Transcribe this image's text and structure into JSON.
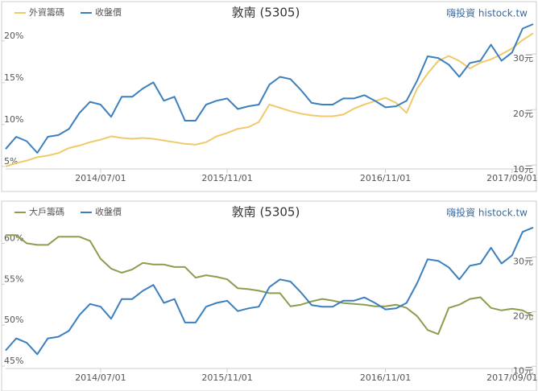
{
  "chart_data": [
    {
      "type": "line",
      "title": "敦南 (5305)",
      "brand": "嗨投資 histock.tw",
      "categories": [
        null,
        null,
        null,
        null,
        null,
        null,
        null,
        null,
        null,
        "2014/07/01",
        null,
        null,
        null,
        null,
        null,
        null,
        null,
        null,
        null,
        null,
        null,
        "2015/11/01",
        null,
        null,
        null,
        null,
        null,
        null,
        null,
        null,
        null,
        null,
        null,
        null,
        null,
        null,
        "2016/11/01",
        null,
        null,
        null,
        null,
        null,
        null,
        null,
        null,
        null,
        null,
        null,
        "2017/09/01",
        null,
        null
      ],
      "series": [
        {
          "name": "外資籌碼",
          "color": "#f0c96b",
          "axis": "y",
          "values": [
            5.0,
            5.4,
            5.7,
            6.1,
            6.3,
            6.6,
            7.2,
            7.5,
            7.9,
            8.2,
            8.6,
            8.4,
            8.3,
            8.4,
            8.3,
            8.1,
            7.9,
            7.7,
            7.6,
            7.9,
            8.6,
            9.0,
            9.5,
            9.7,
            10.3,
            12.4,
            12.0,
            11.6,
            11.3,
            11.1,
            11.0,
            11.0,
            11.2,
            11.9,
            12.4,
            12.8,
            13.2,
            12.6,
            11.4,
            14.3,
            16.1,
            17.6,
            18.2,
            17.6,
            16.7,
            17.4,
            17.8,
            18.4,
            19.1,
            20.1,
            20.9
          ]
        },
        {
          "name": "收盤價",
          "color": "#3b7fbf",
          "axis": "y2",
          "values": [
            12.9,
            15.1,
            14.3,
            12.2,
            15.1,
            15.4,
            16.5,
            19.4,
            21.4,
            20.9,
            18.7,
            22.3,
            22.3,
            23.8,
            24.9,
            21.6,
            22.3,
            18.0,
            18.0,
            20.9,
            21.6,
            22.0,
            20.1,
            20.6,
            20.9,
            24.5,
            25.9,
            25.5,
            23.5,
            21.2,
            20.9,
            20.9,
            22.0,
            22.0,
            22.6,
            21.6,
            20.4,
            20.6,
            21.6,
            25.2,
            29.6,
            29.3,
            28.1,
            25.9,
            28.4,
            28.8,
            31.7,
            28.8,
            30.3,
            34.6,
            35.4
          ]
        }
      ],
      "ylim": [
        4.7,
        22.0
      ],
      "yticks": [
        {
          "value": 5,
          "label": "5%"
        },
        {
          "value": 10,
          "label": "10%"
        },
        {
          "value": 15,
          "label": "15%"
        },
        {
          "value": 20,
          "label": "20%"
        }
      ],
      "y2lim": [
        9.3,
        35.4
      ],
      "y2ticks": [
        {
          "value": 10,
          "label": "10元"
        },
        {
          "value": 20,
          "label": "20元"
        },
        {
          "value": 30,
          "label": "30元"
        }
      ],
      "legend": "top-left"
    },
    {
      "type": "line",
      "title": "敦南 (5305)",
      "brand": "嗨投資 histock.tw",
      "categories": [
        null,
        null,
        null,
        null,
        null,
        null,
        null,
        null,
        null,
        "2014/07/01",
        null,
        null,
        null,
        null,
        null,
        null,
        null,
        null,
        null,
        null,
        null,
        "2015/11/01",
        null,
        null,
        null,
        null,
        null,
        null,
        null,
        null,
        null,
        null,
        null,
        null,
        null,
        null,
        "2016/11/01",
        null,
        null,
        null,
        null,
        null,
        null,
        null,
        null,
        null,
        null,
        null,
        "2017/09/01",
        null,
        null
      ],
      "series": [
        {
          "name": "大戶籌碼",
          "color": "#8a9e4f",
          "axis": "y",
          "values": [
            61.0,
            61.0,
            60.0,
            59.8,
            59.8,
            60.8,
            60.8,
            60.8,
            60.3,
            58.1,
            56.9,
            56.4,
            56.8,
            57.6,
            57.4,
            57.4,
            57.1,
            57.1,
            55.8,
            56.1,
            55.9,
            55.6,
            54.5,
            54.4,
            54.2,
            53.9,
            53.9,
            52.3,
            52.5,
            52.9,
            53.2,
            53.0,
            52.7,
            52.6,
            52.5,
            52.3,
            52.3,
            52.5,
            52.1,
            51.1,
            49.4,
            48.9,
            52.1,
            52.5,
            53.2,
            53.4,
            52.1,
            51.8,
            52.0,
            51.8,
            51.1
          ]
        },
        {
          "name": "收盤價",
          "color": "#3b7fbf",
          "axis": "y2",
          "values": [
            12.9,
            15.1,
            14.3,
            12.2,
            15.1,
            15.4,
            16.5,
            19.4,
            21.4,
            20.9,
            18.7,
            22.3,
            22.3,
            23.8,
            24.9,
            21.6,
            22.3,
            18.0,
            18.0,
            20.9,
            21.6,
            22.0,
            20.1,
            20.6,
            20.9,
            24.5,
            25.9,
            25.5,
            23.5,
            21.2,
            20.9,
            20.9,
            22.0,
            22.0,
            22.6,
            21.6,
            20.4,
            20.6,
            21.6,
            25.2,
            29.6,
            29.3,
            28.1,
            25.9,
            28.4,
            28.8,
            31.7,
            28.8,
            30.3,
            34.6,
            35.4
          ]
        }
      ],
      "ylim": [
        44.7,
        62.4
      ],
      "yticks": [
        {
          "value": 45,
          "label": "45%"
        },
        {
          "value": 50,
          "label": "50%"
        },
        {
          "value": 55,
          "label": "55%"
        },
        {
          "value": 60,
          "label": "60%"
        }
      ],
      "y2lim": [
        9.6,
        36.1
      ],
      "y2ticks": [
        {
          "value": 10,
          "label": "10元"
        },
        {
          "value": 20,
          "label": "20元"
        },
        {
          "value": 30,
          "label": "30元"
        }
      ],
      "legend": "top-left"
    }
  ]
}
